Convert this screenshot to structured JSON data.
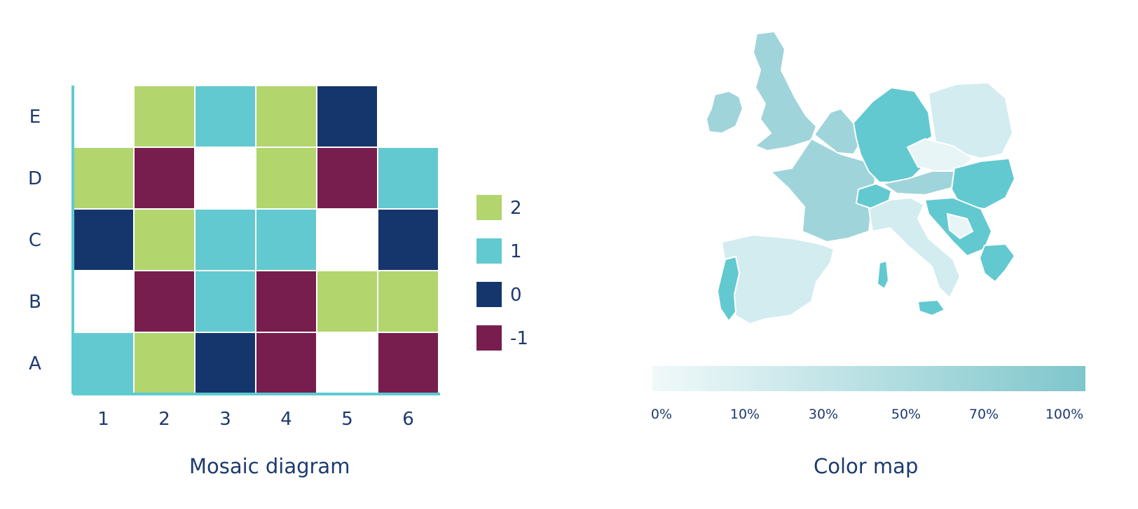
{
  "left_caption": "Mosaic diagram",
  "right_caption": "Color map",
  "chart_data": [
    {
      "type": "heatmap",
      "title": "Mosaic diagram",
      "x": [
        "1",
        "2",
        "3",
        "4",
        "5",
        "6"
      ],
      "y": [
        "A",
        "B",
        "C",
        "D",
        "E"
      ],
      "values": [
        [
          1,
          2,
          0,
          -1,
          null,
          -1
        ],
        [
          null,
          -1,
          1,
          -1,
          2,
          2
        ],
        [
          0,
          2,
          1,
          1,
          null,
          0
        ],
        [
          2,
          -1,
          null,
          2,
          -1,
          1
        ],
        [
          null,
          2,
          1,
          2,
          0,
          null
        ]
      ],
      "legend": {
        "placement": "right",
        "entries": [
          {
            "label": "2",
            "value": 2,
            "color": "#b2d56e"
          },
          {
            "label": "1",
            "value": 1,
            "color": "#62c9d0"
          },
          {
            "label": "0",
            "value": 0,
            "color": "#15366c"
          },
          {
            "label": "-1",
            "value": -1,
            "color": "#771e4f"
          }
        ]
      },
      "axis_color": "#5ccbd2"
    },
    {
      "type": "choropleth",
      "title": "Color map",
      "scale_ticks": [
        "0%",
        "10%",
        "30%",
        "50%",
        "70%",
        "100%"
      ],
      "scale_colors": [
        "#f1f9fa",
        "#7ec6cb"
      ],
      "region_fill_palette": {
        "light": "#d3ecf0",
        "pale": "#e8f5f7",
        "medium": "#9fd4da",
        "strong": "#62c9d0"
      }
    }
  ]
}
